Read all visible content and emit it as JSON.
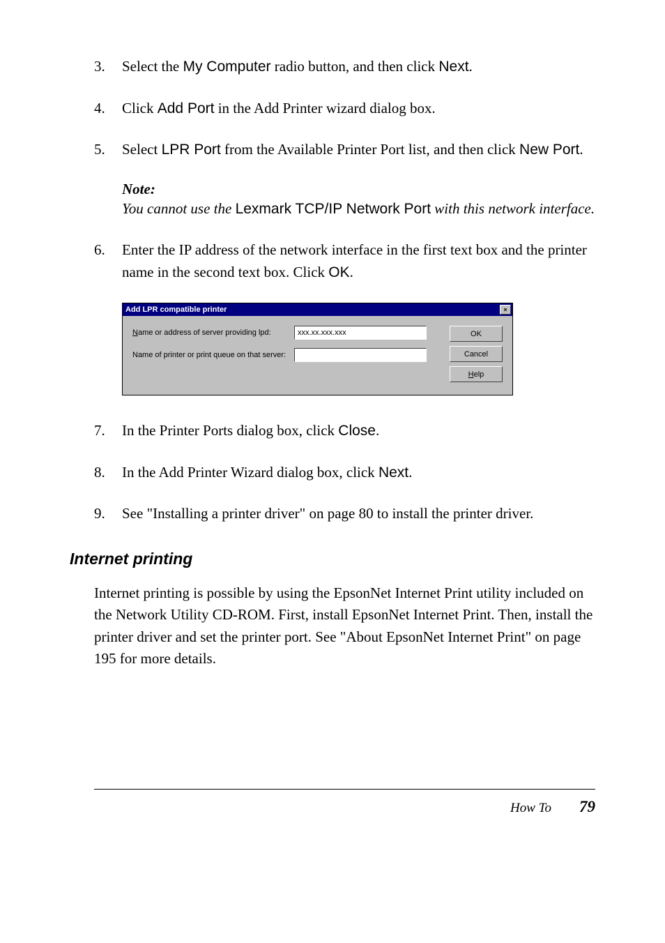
{
  "steps": {
    "s3": {
      "num": "3.",
      "pre": "Select the ",
      "term1": "My Computer",
      "mid": " radio button, and then click ",
      "term2": "Next",
      "post": "."
    },
    "s4": {
      "num": "4.",
      "pre": "Click ",
      "term1": "Add Port",
      "post": " in the Add Printer wizard dialog box."
    },
    "s5": {
      "num": "5.",
      "pre": "Select ",
      "term1": "LPR Port",
      "mid": " from the Available Printer Port list, and then click ",
      "term2": "New Port",
      "post": "."
    },
    "note": {
      "label": "Note:",
      "pre": "You cannot use the ",
      "term": "Lexmark TCP/IP Network Port",
      "post": " with this network interface."
    },
    "s6": {
      "num": "6.",
      "pre": "Enter the IP address of the network interface in the first text box and the printer name in the second text box. Click ",
      "term1": "OK",
      "post": "."
    },
    "s7": {
      "num": "7.",
      "pre": "In the Printer Ports dialog box, click ",
      "term1": "Close",
      "post": "."
    },
    "s8": {
      "num": "8.",
      "pre": "In the Add Printer Wizard dialog box, click ",
      "term1": "Next",
      "post": "."
    },
    "s9": {
      "num": "9.",
      "text": "See  \"Installing a printer driver\" on page 80 to install the printer driver."
    }
  },
  "dialog": {
    "title": "Add LPR compatible printer",
    "close_glyph": "×",
    "label1_ul": "N",
    "label1_rest": "ame or address of server providing lpd:",
    "input1": "xxx.xx.xxx.xxx",
    "label2": "Name of printer or print queue on that server:",
    "input2": "",
    "btn_ok": "OK",
    "btn_cancel": "Cancel",
    "btn_help_ul": "H",
    "btn_help_rest": "elp"
  },
  "section": {
    "heading": "Internet printing",
    "para": "Internet printing is possible by using the EpsonNet Internet Print utility included on the Network Utility CD-ROM. First, install EpsonNet Internet Print. Then, install the printer driver and set the printer port. See  \"About EpsonNet Internet Print\" on page 195 for more details."
  },
  "footer": {
    "title": "How To",
    "page": "79"
  },
  "colors": {
    "titlebar": "#000080",
    "dialog_bg": "#c0c0c0",
    "page_bg": "#ffffff"
  }
}
